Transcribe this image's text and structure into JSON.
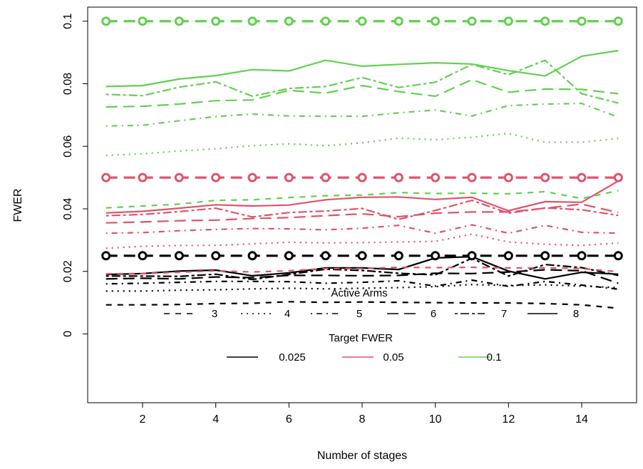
{
  "chart_data": {
    "type": "line",
    "title": "",
    "xlabel": "Number of stages",
    "ylabel": "FWER",
    "xlim": [
      0.5,
      15.5
    ],
    "ylim": [
      -0.022,
      0.1045
    ],
    "x": [
      1,
      2,
      3,
      4,
      5,
      6,
      7,
      8,
      9,
      10,
      11,
      12,
      13,
      14,
      15
    ],
    "x_ticks": [
      2,
      4,
      6,
      8,
      10,
      12,
      14
    ],
    "y_ticks": [
      0,
      0.02,
      0.04,
      0.06,
      0.08,
      0.1
    ],
    "y_tick_labels": [
      "0",
      "0.02",
      "0.04",
      "0.06",
      "0.08",
      "0.1"
    ],
    "grid": false,
    "legend_active_arms": {
      "title": "Active Arms",
      "entries": [
        "3",
        "4",
        "5",
        "6",
        "7",
        "8"
      ],
      "dash_styles": [
        "dashed",
        "dotted",
        "dotdash",
        "longdash",
        "twodash",
        "solid"
      ]
    },
    "legend_target_fwer": {
      "title": "Target FWER",
      "entries": [
        "0.025",
        "0.05",
        "0.1"
      ],
      "colors": [
        "#000000",
        "#DF536B",
        "#61D04F"
      ]
    },
    "target_lines": [
      {
        "value": 0.025,
        "color": "#000000"
      },
      {
        "value": 0.05,
        "color": "#DF536B"
      },
      {
        "value": 0.1,
        "color": "#61D04F"
      }
    ],
    "series": [
      {
        "target": 0.025,
        "arms": "3",
        "style": "dashed",
        "color": "#000000",
        "values": [
          0.0093,
          0.0093,
          0.0094,
          0.0097,
          0.0098,
          0.0103,
          0.0101,
          0.0102,
          0.0101,
          0.01,
          0.0099,
          0.0099,
          0.0097,
          0.0093,
          0.0082
        ]
      },
      {
        "target": 0.025,
        "arms": "4",
        "style": "dotted",
        "color": "#000000",
        "values": [
          0.0137,
          0.0137,
          0.014,
          0.0141,
          0.0144,
          0.0146,
          0.0144,
          0.0146,
          0.0148,
          0.0151,
          0.0158,
          0.0155,
          0.0157,
          0.0153,
          0.0148
        ]
      },
      {
        "target": 0.025,
        "arms": "5",
        "style": "dotdash",
        "color": "#000000",
        "values": [
          0.016,
          0.0162,
          0.0165,
          0.0168,
          0.0168,
          0.0167,
          0.0162,
          0.0165,
          0.017,
          0.0153,
          0.0172,
          0.0152,
          0.0168,
          0.0156,
          0.0143
        ]
      },
      {
        "target": 0.025,
        "arms": "6",
        "style": "longdash",
        "color": "#000000",
        "values": [
          0.0176,
          0.0178,
          0.0176,
          0.0182,
          0.018,
          0.0187,
          0.0187,
          0.0186,
          0.0187,
          0.0194,
          0.0193,
          0.0198,
          0.0205,
          0.0202,
          0.0162
        ]
      },
      {
        "target": 0.025,
        "arms": "7",
        "style": "twodash",
        "color": "#000000",
        "values": [
          0.0185,
          0.0185,
          0.0184,
          0.0191,
          0.0174,
          0.019,
          0.0207,
          0.0203,
          0.0194,
          0.0189,
          0.0242,
          0.0185,
          0.0222,
          0.0212,
          0.0187
        ]
      },
      {
        "target": 0.025,
        "arms": "8",
        "style": "solid",
        "color": "#000000",
        "values": [
          0.019,
          0.0193,
          0.0201,
          0.0204,
          0.0186,
          0.0195,
          0.0211,
          0.0211,
          0.0206,
          0.0243,
          0.0247,
          0.0201,
          0.0176,
          0.0197,
          0.0191
        ]
      },
      {
        "target": 0.05,
        "arms": "3",
        "style": "dashed",
        "color": "#DF536B",
        "values": [
          0.0192,
          0.0193,
          0.0197,
          0.0202,
          0.0198,
          0.0202,
          0.0209,
          0.0209,
          0.0213,
          0.0212,
          0.0213,
          0.0211,
          0.0211,
          0.0209,
          0.0199
        ]
      },
      {
        "target": 0.05,
        "arms": "4",
        "style": "dotted",
        "color": "#DF536B",
        "values": [
          0.0274,
          0.028,
          0.0283,
          0.0283,
          0.0288,
          0.0293,
          0.0291,
          0.0292,
          0.0294,
          0.0296,
          0.0319,
          0.0294,
          0.0287,
          0.0283,
          0.0291
        ]
      },
      {
        "target": 0.05,
        "arms": "5",
        "style": "dotdash",
        "color": "#DF536B",
        "values": [
          0.0322,
          0.0324,
          0.033,
          0.0334,
          0.0337,
          0.0336,
          0.0333,
          0.0338,
          0.0347,
          0.0322,
          0.0349,
          0.0322,
          0.0347,
          0.0325,
          0.0322
        ]
      },
      {
        "target": 0.05,
        "arms": "6",
        "style": "longdash",
        "color": "#DF536B",
        "values": [
          0.0355,
          0.0358,
          0.0362,
          0.0364,
          0.0369,
          0.0372,
          0.0378,
          0.0384,
          0.0375,
          0.0386,
          0.039,
          0.039,
          0.0402,
          0.0415,
          0.0388
        ]
      },
      {
        "target": 0.05,
        "arms": "7",
        "style": "twodash",
        "color": "#DF536B",
        "values": [
          0.0378,
          0.0382,
          0.0391,
          0.0402,
          0.0374,
          0.0388,
          0.0393,
          0.0401,
          0.0366,
          0.0395,
          0.0427,
          0.0386,
          0.0403,
          0.0397,
          0.0379
        ]
      },
      {
        "target": 0.05,
        "arms": "8",
        "style": "solid",
        "color": "#DF536B",
        "values": [
          0.0387,
          0.0392,
          0.0402,
          0.0413,
          0.0409,
          0.0412,
          0.0429,
          0.0437,
          0.0438,
          0.043,
          0.0437,
          0.0394,
          0.0423,
          0.0421,
          0.0489
        ]
      },
      {
        "target": 0.1,
        "arms": "3",
        "style": "dashed",
        "color": "#61D04F",
        "values": [
          0.0403,
          0.0409,
          0.0415,
          0.0427,
          0.0429,
          0.0436,
          0.0442,
          0.0444,
          0.0452,
          0.0449,
          0.045,
          0.0448,
          0.0455,
          0.0433,
          0.0458
        ]
      },
      {
        "target": 0.1,
        "arms": "4",
        "style": "dotted",
        "color": "#61D04F",
        "values": [
          0.0571,
          0.0576,
          0.0585,
          0.0592,
          0.0602,
          0.0608,
          0.0602,
          0.0611,
          0.0626,
          0.0621,
          0.0629,
          0.0641,
          0.0613,
          0.0613,
          0.0625
        ]
      },
      {
        "target": 0.1,
        "arms": "5",
        "style": "dotdash",
        "color": "#61D04F",
        "values": [
          0.0665,
          0.0667,
          0.0682,
          0.0695,
          0.0703,
          0.0697,
          0.0696,
          0.0696,
          0.0707,
          0.0716,
          0.0697,
          0.073,
          0.0735,
          0.0737,
          0.0693
        ]
      },
      {
        "target": 0.1,
        "arms": "6",
        "style": "longdash",
        "color": "#61D04F",
        "values": [
          0.0726,
          0.0728,
          0.0735,
          0.0746,
          0.0748,
          0.0779,
          0.077,
          0.0794,
          0.0775,
          0.076,
          0.0813,
          0.0773,
          0.0783,
          0.0782,
          0.0768
        ]
      },
      {
        "target": 0.1,
        "arms": "7",
        "style": "twodash",
        "color": "#61D04F",
        "values": [
          0.0766,
          0.0762,
          0.0789,
          0.0806,
          0.076,
          0.0785,
          0.0791,
          0.082,
          0.0788,
          0.0805,
          0.0862,
          0.0829,
          0.0875,
          0.0768,
          0.0738
        ]
      },
      {
        "target": 0.1,
        "arms": "8",
        "style": "solid",
        "color": "#61D04F",
        "values": [
          0.0791,
          0.0794,
          0.0815,
          0.0826,
          0.0845,
          0.0841,
          0.0875,
          0.0856,
          0.0862,
          0.0867,
          0.0863,
          0.0842,
          0.0825,
          0.0888,
          0.0906
        ]
      }
    ]
  }
}
